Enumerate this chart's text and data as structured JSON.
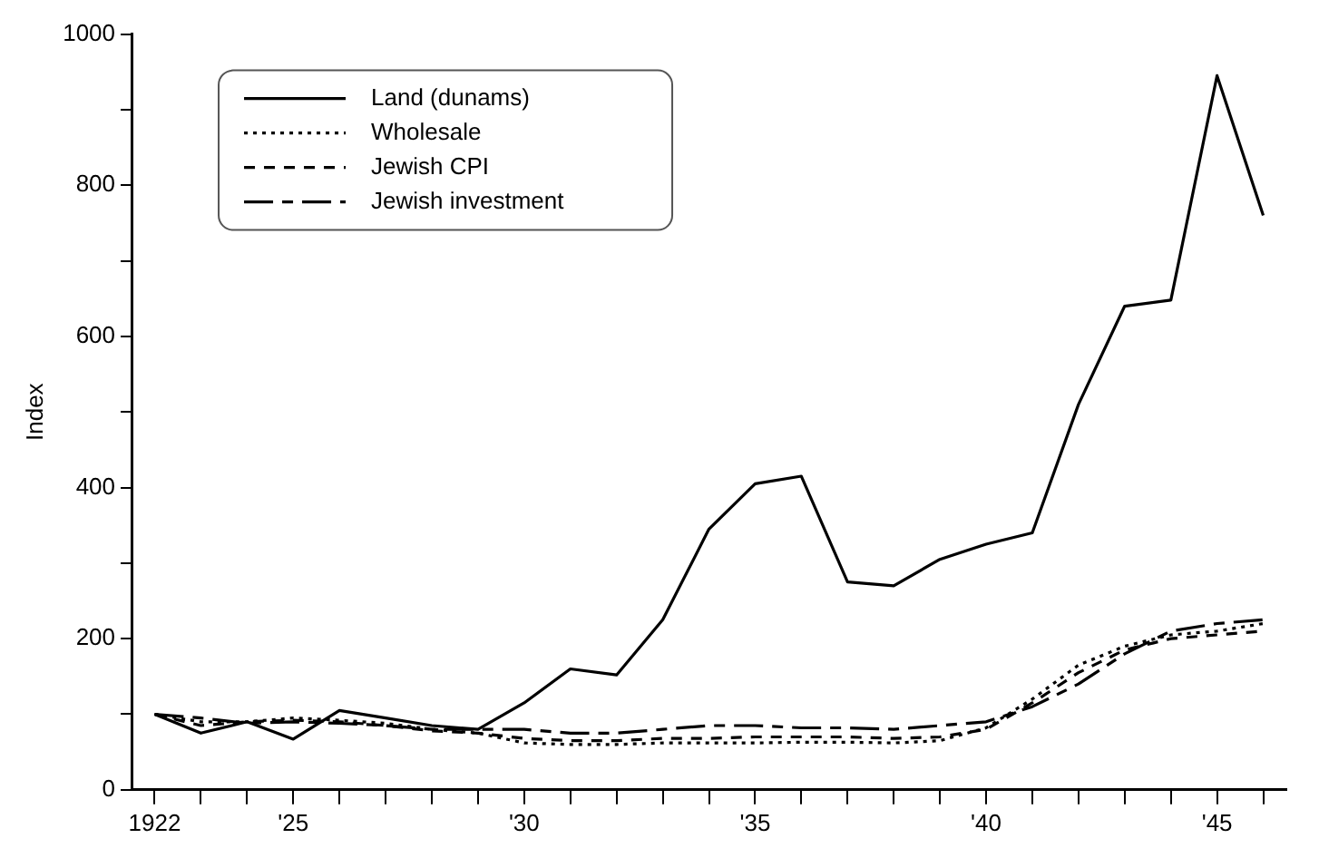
{
  "chart_data": {
    "type": "line",
    "ylabel": "Index",
    "x": [
      1922,
      1923,
      1924,
      1925,
      1926,
      1927,
      1928,
      1929,
      1930,
      1931,
      1932,
      1933,
      1934,
      1935,
      1936,
      1937,
      1938,
      1939,
      1940,
      1941,
      1942,
      1943,
      1944,
      1945,
      1946
    ],
    "xlim": [
      1921.5,
      1946.5
    ],
    "xticks": [
      {
        "value": 1922,
        "label": "1922"
      },
      {
        "value": 1923,
        "label": null
      },
      {
        "value": 1924,
        "label": null
      },
      {
        "value": 1925,
        "label": "'25"
      },
      {
        "value": 1926,
        "label": null
      },
      {
        "value": 1927,
        "label": null
      },
      {
        "value": 1928,
        "label": null
      },
      {
        "value": 1929,
        "label": null
      },
      {
        "value": 1930,
        "label": "'30"
      },
      {
        "value": 1931,
        "label": null
      },
      {
        "value": 1932,
        "label": null
      },
      {
        "value": 1933,
        "label": null
      },
      {
        "value": 1934,
        "label": null
      },
      {
        "value": 1935,
        "label": "'35"
      },
      {
        "value": 1936,
        "label": null
      },
      {
        "value": 1937,
        "label": null
      },
      {
        "value": 1938,
        "label": null
      },
      {
        "value": 1939,
        "label": null
      },
      {
        "value": 1940,
        "label": "'40"
      },
      {
        "value": 1941,
        "label": null
      },
      {
        "value": 1942,
        "label": null
      },
      {
        "value": 1943,
        "label": null
      },
      {
        "value": 1944,
        "label": null
      },
      {
        "value": 1945,
        "label": "'45"
      },
      {
        "value": 1946,
        "label": null
      }
    ],
    "ylim": [
      0,
      1000
    ],
    "yticks": [
      0,
      {
        "value": 100,
        "label": null
      },
      200,
      {
        "value": 300,
        "label": null
      },
      400,
      {
        "value": 500,
        "label": null
      },
      600,
      {
        "value": 700,
        "label": null
      },
      800,
      {
        "value": 900,
        "label": null
      },
      1000
    ],
    "legend": "top left",
    "grid": false,
    "series": [
      {
        "name": "Land (dunams)",
        "color": "#000000",
        "line_style": "solid",
        "values": [
          100,
          75,
          90,
          67,
          105,
          95,
          85,
          80,
          115,
          160,
          152,
          225,
          345,
          405,
          415,
          275,
          270,
          305,
          325,
          340,
          510,
          640,
          648,
          945,
          760
        ]
      },
      {
        "name": "Wholesale",
        "color": "#000000",
        "line_style": "dotted",
        "values": [
          100,
          90,
          90,
          95,
          92,
          88,
          80,
          75,
          62,
          60,
          60,
          62,
          62,
          62,
          63,
          63,
          62,
          65,
          82,
          120,
          165,
          190,
          205,
          210,
          220
        ]
      },
      {
        "name": "Jewish CPI",
        "color": "#000000",
        "line_style": "dashed",
        "values": [
          100,
          85,
          90,
          92,
          90,
          85,
          78,
          75,
          68,
          65,
          65,
          68,
          68,
          70,
          70,
          70,
          68,
          70,
          80,
          115,
          155,
          185,
          200,
          205,
          210
        ]
      },
      {
        "name": "Jewish investment",
        "color": "#000000",
        "line_style": "longdash",
        "values": [
          100,
          95,
          88,
          90,
          88,
          85,
          80,
          80,
          80,
          75,
          75,
          80,
          85,
          85,
          82,
          82,
          80,
          85,
          90,
          110,
          140,
          180,
          210,
          220,
          225
        ]
      }
    ]
  }
}
